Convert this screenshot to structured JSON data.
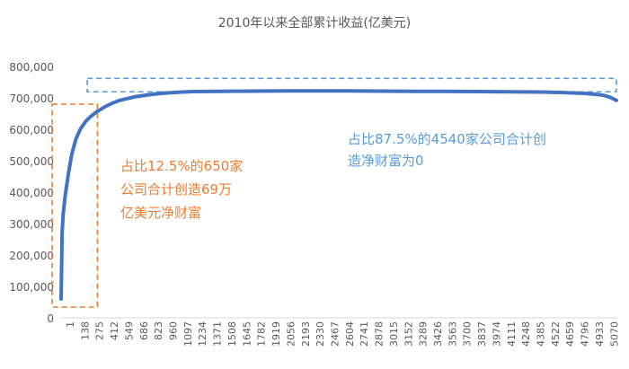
{
  "chart_data": {
    "type": "line",
    "title": "2010年以来全部累计收益(亿美元)",
    "xlabel": "",
    "ylabel": "",
    "ylim": [
      0,
      800000
    ],
    "yticks": [
      "0",
      "100,000",
      "200,000",
      "300,000",
      "400,000",
      "500,000",
      "600,000",
      "700,000",
      "800,000"
    ],
    "xticks": [
      "1",
      "138",
      "275",
      "412",
      "549",
      "686",
      "823",
      "960",
      "1097",
      "1234",
      "1371",
      "1508",
      "1645",
      "1782",
      "1919",
      "2056",
      "2193",
      "2330",
      "2467",
      "2604",
      "2741",
      "2878",
      "3015",
      "3152",
      "3289",
      "3426",
      "3563",
      "3700",
      "3837",
      "3974",
      "4111",
      "4248",
      "4385",
      "4522",
      "4659",
      "4796",
      "4933",
      "5070"
    ],
    "x_range": [
      1,
      5190
    ],
    "series": [
      {
        "color": "#4472C4",
        "points": [
          [
            1,
            60000
          ],
          [
            5,
            150000
          ],
          [
            10,
            270000
          ],
          [
            20,
            330000
          ],
          [
            40,
            390000
          ],
          [
            70,
            460000
          ],
          [
            100,
            520000
          ],
          [
            140,
            570000
          ],
          [
            180,
            600000
          ],
          [
            230,
            625000
          ],
          [
            275,
            640000
          ],
          [
            330,
            655000
          ],
          [
            412,
            672000
          ],
          [
            480,
            683000
          ],
          [
            549,
            692000
          ],
          [
            686,
            703000
          ],
          [
            823,
            710000
          ],
          [
            960,
            715000
          ],
          [
            1097,
            718000
          ],
          [
            1234,
            720000
          ],
          [
            1500,
            721000
          ],
          [
            1800,
            721500
          ],
          [
            2100,
            722000
          ],
          [
            2400,
            722000
          ],
          [
            2700,
            722000
          ],
          [
            3000,
            721500
          ],
          [
            3300,
            721000
          ],
          [
            3600,
            720500
          ],
          [
            3900,
            720000
          ],
          [
            4200,
            719500
          ],
          [
            4500,
            718500
          ],
          [
            4700,
            717000
          ],
          [
            4900,
            714000
          ],
          [
            5000,
            711000
          ],
          [
            5070,
            708000
          ],
          [
            5130,
            702000
          ],
          [
            5190,
            692000
          ]
        ]
      }
    ],
    "annotations": [
      {
        "lines": [
          "占比12.5%的650家",
          "公司合计创造69万",
          "亿美元净财富"
        ],
        "color": "#ED7D31"
      },
      {
        "lines": [
          "占比87.5%的4540家公司合计创",
          "造净财富为0"
        ],
        "color": "#5B9BD5"
      }
    ],
    "highlight_boxes": [
      {
        "label": "top-650-companies",
        "x_from": 1,
        "x_to": 340,
        "y_from": 0,
        "y_to": 680000,
        "color": "#ED7D31"
      },
      {
        "label": "other-4540-companies",
        "x_from": 330,
        "x_to": 5190,
        "y_from": 685000,
        "y_to": 762000,
        "color": "#5B9BD5"
      }
    ],
    "grid": false,
    "legend": "none"
  }
}
